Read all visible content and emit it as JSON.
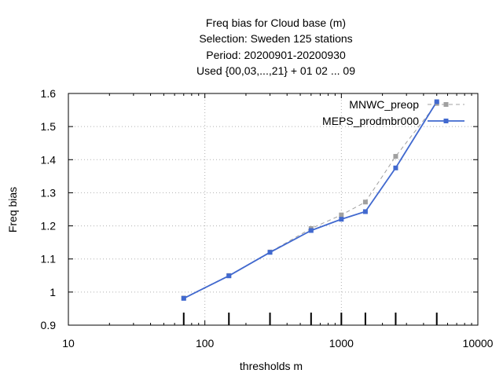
{
  "chart_data": {
    "type": "line",
    "title": [
      "Freq bias  for Cloud base (m)",
      "Selection: Sweden     125 stations",
      "Period: 20200901-20200930",
      "Used {00,03,...,21} + 01 02 ... 09"
    ],
    "xlabel": "thresholds m",
    "ylabel": "Freq bias",
    "x_scale": "log",
    "xlim": [
      10,
      10000
    ],
    "ylim": [
      0.9,
      1.6
    ],
    "x_ticks": [
      10,
      100,
      1000,
      10000
    ],
    "x_tick_labels": [
      "10",
      "100",
      "1000",
      "10000"
    ],
    "y_ticks": [
      0.9,
      1.0,
      1.1,
      1.2,
      1.3,
      1.4,
      1.5,
      1.6
    ],
    "y_tick_labels": [
      "0.9",
      "1",
      "1.1",
      "1.2",
      "1.3",
      "1.4",
      "1.5",
      "1.6"
    ],
    "grid": true,
    "legend_position": "top-right",
    "x": [
      70,
      150,
      300,
      600,
      1000,
      1500,
      2500,
      5000
    ],
    "series": [
      {
        "name": "MNWC_preop",
        "color": "#a0a0a0",
        "dashed": true,
        "values": [
          0.982,
          1.05,
          1.121,
          1.192,
          1.233,
          1.272,
          1.41,
          1.57
        ]
      },
      {
        "name": "MEPS_prodmbr000",
        "color": "#4169cf",
        "dashed": false,
        "values": [
          0.981,
          1.049,
          1.12,
          1.186,
          1.22,
          1.243,
          1.375,
          1.575
        ]
      }
    ]
  }
}
